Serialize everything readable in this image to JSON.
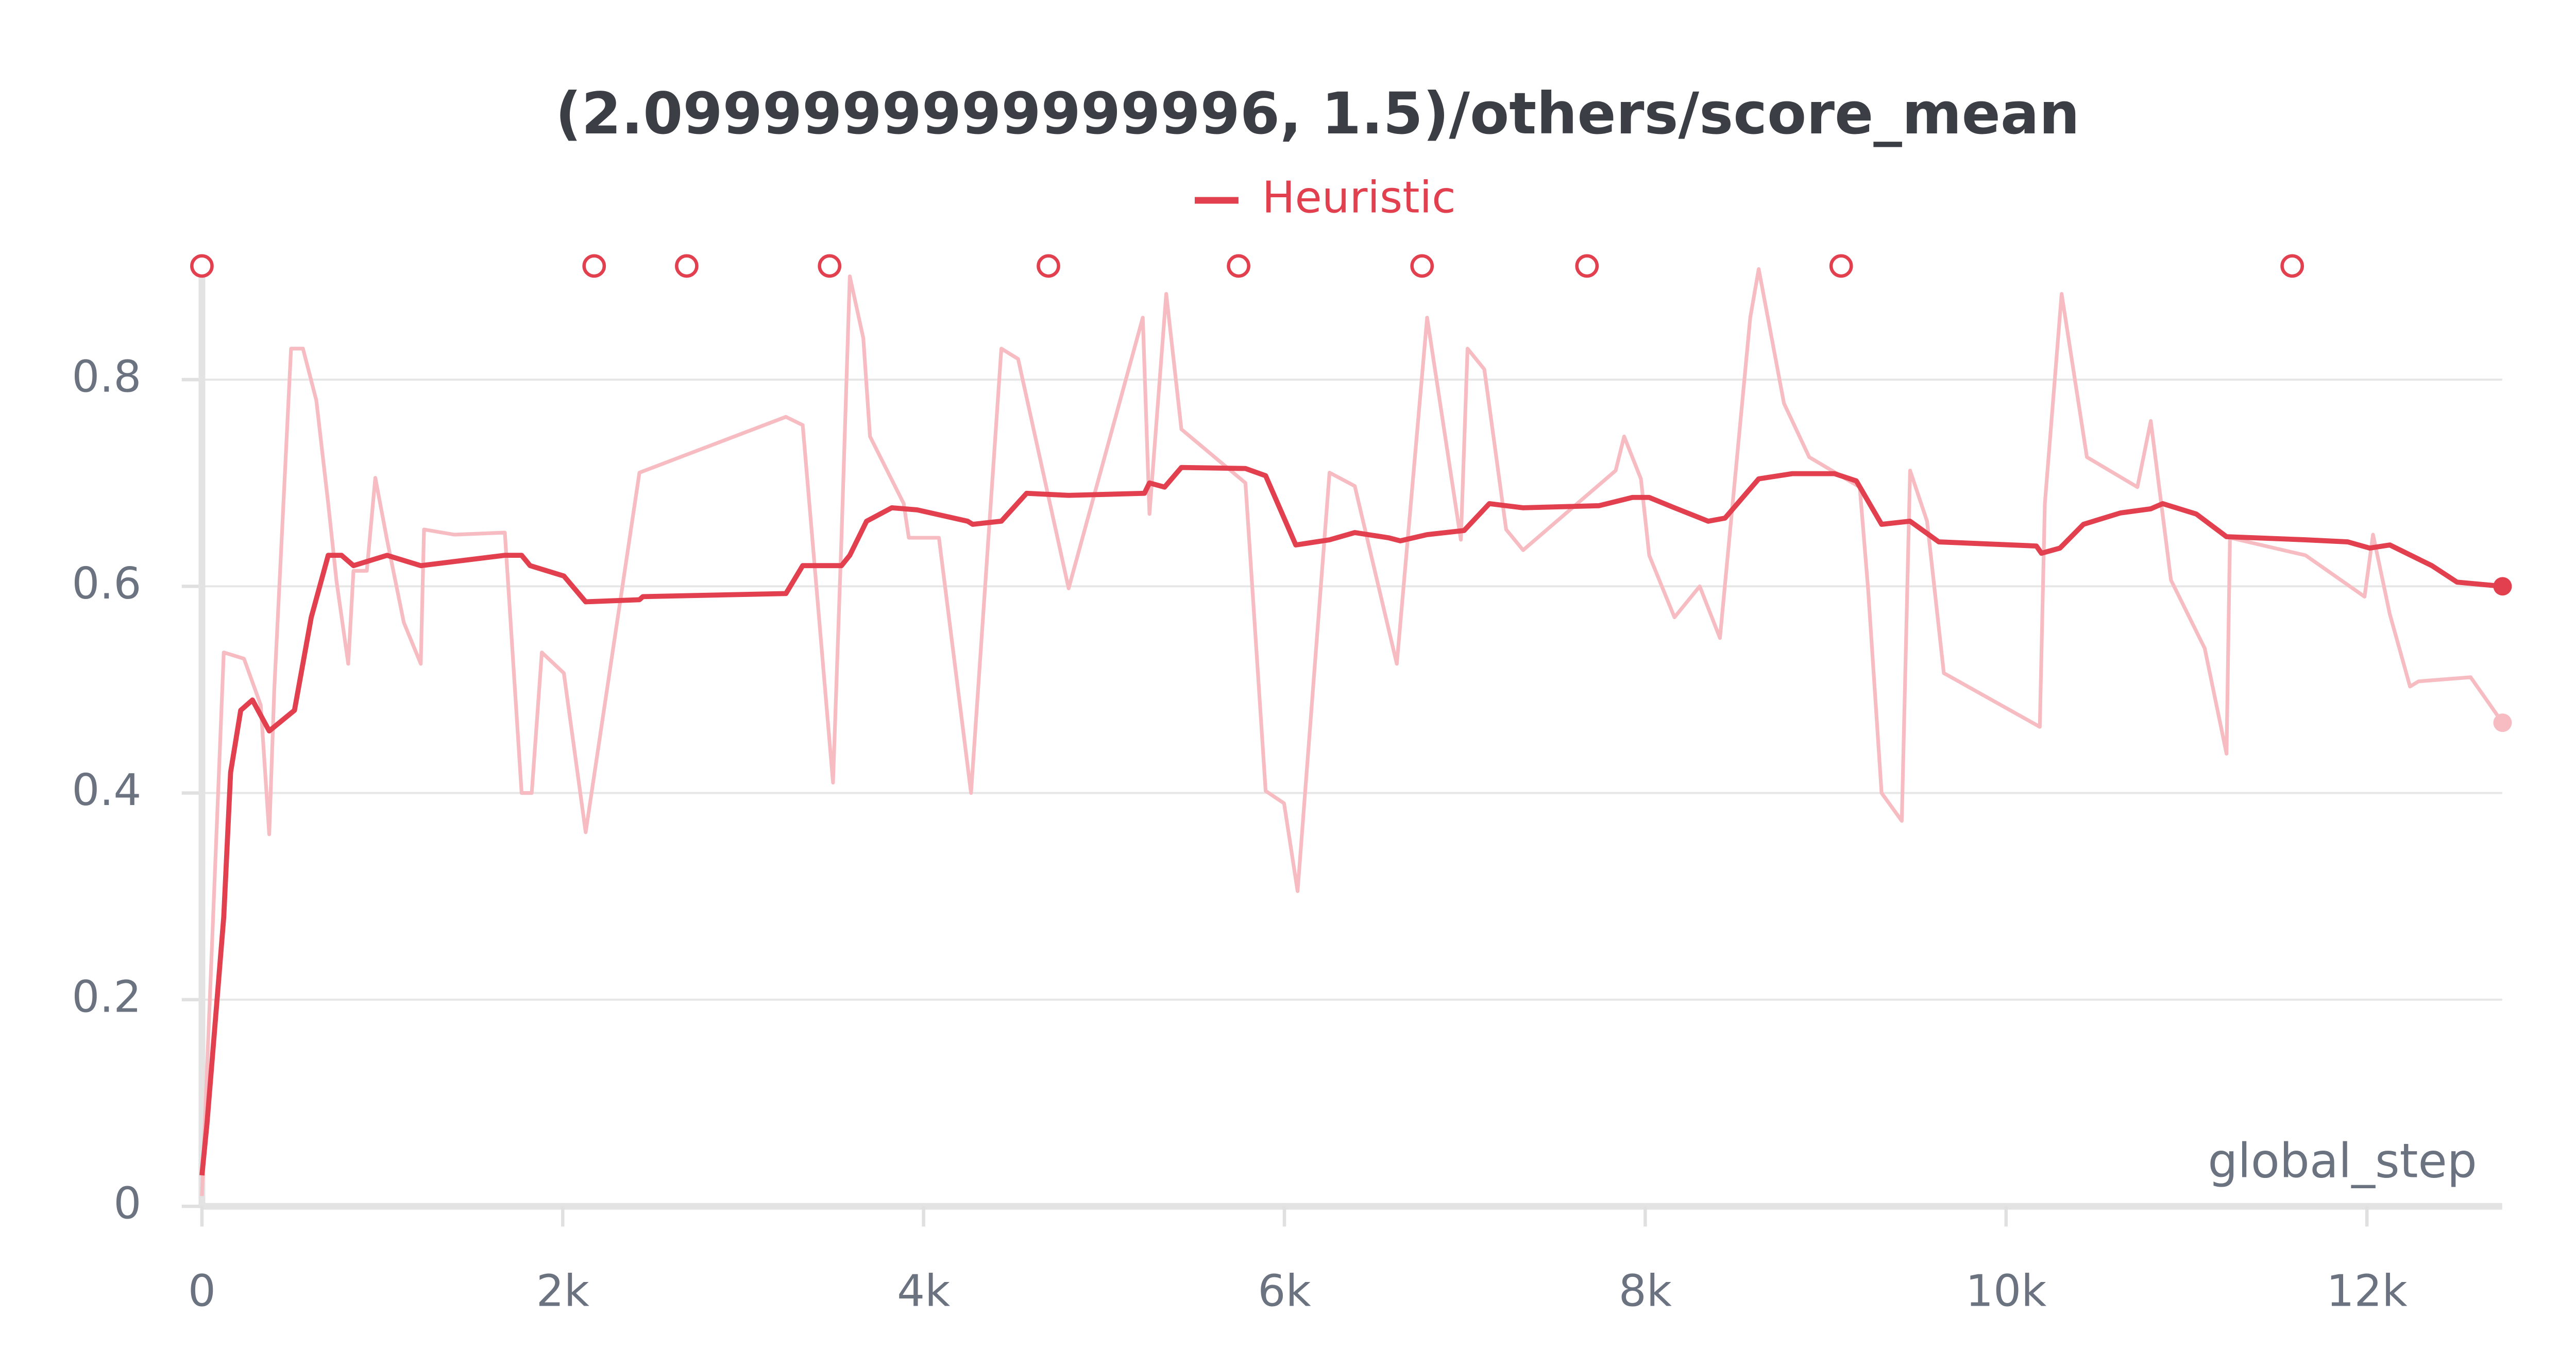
{
  "chart_data": {
    "type": "line",
    "title": "(2.0999999999999996, 1.5)/others/score_mean",
    "x_label": "global_step",
    "xlim": [
      0,
      12750
    ],
    "ylim": [
      0,
      0.91
    ],
    "xticks": [
      0,
      {
        "value": 2000,
        "label": "2k"
      },
      {
        "value": 4000,
        "label": "4k"
      },
      {
        "value": 6000,
        "label": "6k"
      },
      {
        "value": 8000,
        "label": "8k"
      },
      {
        "value": 10000,
        "label": "10k"
      },
      {
        "value": 12000,
        "label": "12k"
      }
    ],
    "yticks": [
      0,
      0.2,
      0.4,
      0.6,
      0.8
    ],
    "grid": true,
    "event_markers": [
      0,
      2174,
      2687,
      3479,
      4692,
      5746,
      6763,
      7677,
      9086,
      11586
    ],
    "series": [
      {
        "name": "Heuristic",
        "color": "#e2404f",
        "x": [
          0,
          28,
          121,
          159,
          215,
          280,
          373,
          513,
          606,
          700,
          774,
          840,
          1026,
          1213,
          1679,
          1772,
          1819,
          2006,
          2127,
          2425,
          2444,
          3237,
          3330,
          3545,
          3591,
          3684,
          3824,
          3964,
          4244,
          4272,
          4431,
          4571,
          4804,
          5224,
          5252,
          5336,
          5429,
          5784,
          5896,
          6063,
          6250,
          6390,
          6576,
          6642,
          6791,
          6996,
          7136,
          7323,
          7743,
          7929,
          8022,
          8162,
          8349,
          8442,
          8629,
          8815,
          9049,
          9170,
          9310,
          9468,
          9627,
          10168,
          10196,
          10299,
          10429,
          10634,
          10802,
          10868,
          11054,
          11222,
          11660,
          11894,
          12015,
          12127,
          12360,
          12500,
          12752
        ],
        "values": [
          0.03,
          0.08,
          0.28,
          0.42,
          0.48,
          0.49,
          0.46,
          0.48,
          0.57,
          0.63,
          0.63,
          0.62,
          0.63,
          0.62,
          0.63,
          0.63,
          0.62,
          0.61,
          0.585,
          0.587,
          0.59,
          0.593,
          0.62,
          0.62,
          0.63,
          0.663,
          0.676,
          0.674,
          0.663,
          0.66,
          0.663,
          0.69,
          0.688,
          0.69,
          0.7,
          0.696,
          0.715,
          0.714,
          0.707,
          0.64,
          0.645,
          0.652,
          0.647,
          0.644,
          0.65,
          0.654,
          0.68,
          0.676,
          0.678,
          0.686,
          0.686,
          0.676,
          0.663,
          0.666,
          0.704,
          0.709,
          0.709,
          0.702,
          0.66,
          0.663,
          0.643,
          0.639,
          0.632,
          0.637,
          0.66,
          0.671,
          0.675,
          0.68,
          0.67,
          0.648,
          0.645,
          0.643,
          0.637,
          0.64,
          0.62,
          0.604,
          0.6
        ]
      },
      {
        "color": "#f7bcc1",
        "x": [
          0,
          121,
          233,
          326,
          373,
          401,
          494,
          560,
          634,
          700,
          746,
          811,
          840,
          914,
          961,
          1026,
          1119,
          1213,
          1231,
          1399,
          1679,
          1772,
          1828,
          1884,
          2006,
          2127,
          2425,
          3237,
          3330,
          3498,
          3545,
          3591,
          3666,
          3703,
          3890,
          3918,
          4085,
          4263,
          4431,
          4524,
          4804,
          5215,
          5252,
          5345,
          5429,
          5784,
          5896,
          5998,
          6073,
          6250,
          6390,
          6623,
          6791,
          6978,
          7015,
          7108,
          7229,
          7323,
          7836,
          7883,
          7976,
          8022,
          8162,
          8302,
          8414,
          8582,
          8629,
          8769,
          8909,
          9189,
          9235,
          9310,
          9422,
          9468,
          9562,
          9655,
          10187,
          10215,
          10308,
          10448,
          10728,
          10802,
          10914,
          11101,
          11222,
          11241,
          11660,
          11987,
          12034,
          12127,
          12239,
          12286,
          12575,
          12752
        ],
        "values": [
          0.01,
          0.536,
          0.53,
          0.485,
          0.36,
          0.5,
          0.83,
          0.83,
          0.78,
          0.68,
          0.605,
          0.525,
          0.615,
          0.615,
          0.705,
          0.645,
          0.565,
          0.525,
          0.655,
          0.65,
          0.652,
          0.4,
          0.4,
          0.536,
          0.516,
          0.362,
          0.71,
          0.764,
          0.756,
          0.41,
          0.647,
          0.9,
          0.84,
          0.745,
          0.68,
          0.647,
          0.647,
          0.4,
          0.83,
          0.82,
          0.598,
          0.86,
          0.67,
          0.883,
          0.752,
          0.7,
          0.402,
          0.39,
          0.305,
          0.71,
          0.697,
          0.525,
          0.86,
          0.645,
          0.83,
          0.81,
          0.655,
          0.635,
          0.712,
          0.745,
          0.704,
          0.63,
          0.57,
          0.6,
          0.55,
          0.86,
          0.907,
          0.777,
          0.725,
          0.696,
          0.598,
          0.4,
          0.373,
          0.712,
          0.663,
          0.516,
          0.464,
          0.68,
          0.883,
          0.725,
          0.696,
          0.76,
          0.606,
          0.54,
          0.438,
          0.647,
          0.63,
          0.59,
          0.65,
          0.573,
          0.503,
          0.508,
          0.512,
          0.468
        ]
      }
    ]
  }
}
